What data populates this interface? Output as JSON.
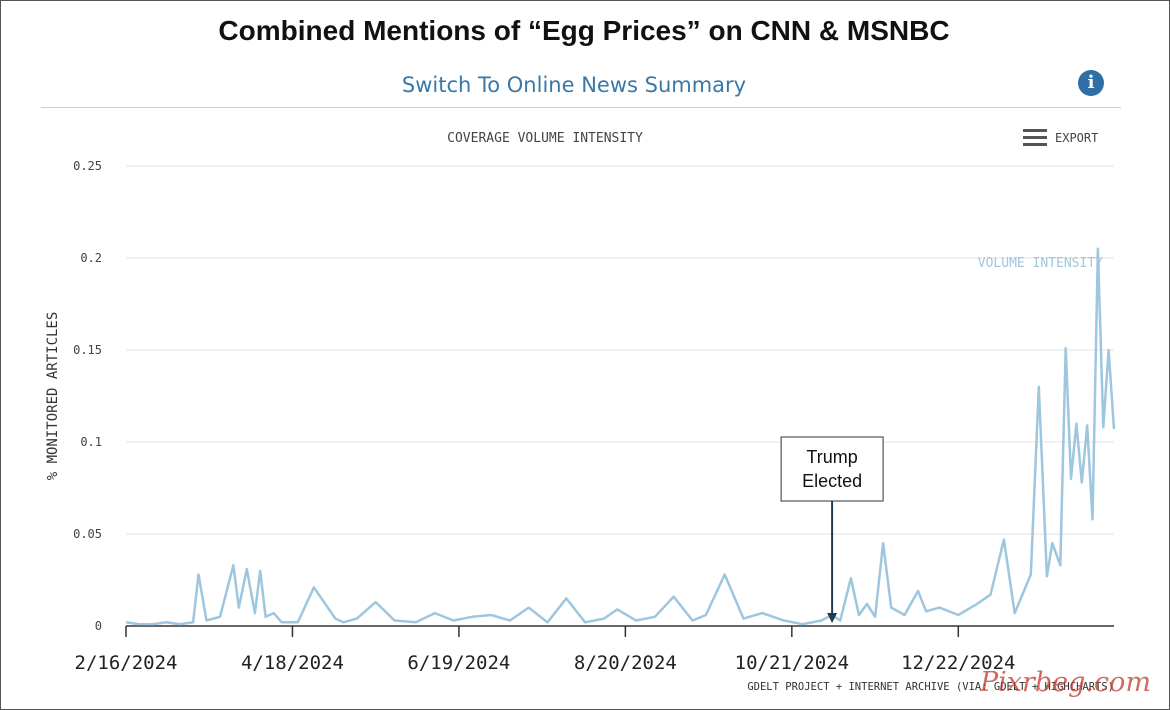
{
  "page": {
    "title": "Combined Mentions of “Egg Prices” on CNN & MSNBC",
    "switch_link": "Switch To Online News Summary",
    "info_icon": "info-icon",
    "export_label": "EXPORT",
    "export_icon": "hamburger-menu-icon",
    "credit": "GDELT PROJECT + INTERNET ARCHIVE (VIA: GDELT + HIGHCHARTS)",
    "watermark": "Pixrbeg.com"
  },
  "colors": {
    "series": "#9ec6df",
    "grid": "#e3e3e3",
    "axis": "#333333",
    "link": "#3a78a8",
    "info": "#2f6ea6",
    "watermark": "#c0392b"
  },
  "chart_data": {
    "type": "line",
    "title": "COVERAGE VOLUME INTENSITY",
    "ylabel": "% MONITORED ARTICLES",
    "xlabel": "",
    "ylim": [
      0,
      0.25
    ],
    "yticks": [
      0,
      0.05,
      0.1,
      0.15,
      0.2,
      0.25
    ],
    "ytick_labels": [
      "0",
      "0.05",
      "0.1",
      "0.15",
      "0.2",
      "0.25"
    ],
    "xlim": [
      "2024-02-16",
      "2025-02-18"
    ],
    "xticks": [
      "2024-02-16",
      "2024-04-18",
      "2024-06-19",
      "2024-08-20",
      "2024-10-21",
      "2024-12-22"
    ],
    "xtick_labels": [
      "2/16/2024",
      "4/18/2024",
      "6/19/2024",
      "8/20/2024",
      "10/21/2024",
      "12/22/2024"
    ],
    "grid": true,
    "series": [
      {
        "name": "VOLUME INTENSITY",
        "x": [
          "2024-02-16",
          "2024-02-21",
          "2024-02-26",
          "2024-03-02",
          "2024-03-07",
          "2024-03-12",
          "2024-03-14",
          "2024-03-17",
          "2024-03-22",
          "2024-03-27",
          "2024-03-29",
          "2024-04-01",
          "2024-04-04",
          "2024-04-06",
          "2024-04-08",
          "2024-04-11",
          "2024-04-14",
          "2024-04-20",
          "2024-04-26",
          "2024-05-04",
          "2024-05-07",
          "2024-05-12",
          "2024-05-19",
          "2024-05-26",
          "2024-06-03",
          "2024-06-10",
          "2024-06-17",
          "2024-06-24",
          "2024-07-01",
          "2024-07-08",
          "2024-07-15",
          "2024-07-22",
          "2024-07-29",
          "2024-08-05",
          "2024-08-12",
          "2024-08-17",
          "2024-08-24",
          "2024-08-31",
          "2024-09-07",
          "2024-09-14",
          "2024-09-19",
          "2024-09-26",
          "2024-10-03",
          "2024-10-10",
          "2024-10-18",
          "2024-10-25",
          "2024-11-01",
          "2024-11-05",
          "2024-11-08",
          "2024-11-12",
          "2024-11-15",
          "2024-11-18",
          "2024-11-21",
          "2024-11-24",
          "2024-11-27",
          "2024-12-02",
          "2024-12-07",
          "2024-12-10",
          "2024-12-15",
          "2024-12-22",
          "2024-12-29",
          "2025-01-03",
          "2025-01-08",
          "2025-01-12",
          "2025-01-18",
          "2025-01-21",
          "2025-01-24",
          "2025-01-26",
          "2025-01-29",
          "2025-01-31",
          "2025-02-02",
          "2025-02-04",
          "2025-02-06",
          "2025-02-08",
          "2025-02-10",
          "2025-02-12",
          "2025-02-14",
          "2025-02-16",
          "2025-02-18"
        ],
        "values": [
          0.002,
          0.001,
          0.001,
          0.002,
          0.001,
          0.002,
          0.028,
          0.003,
          0.005,
          0.033,
          0.01,
          0.031,
          0.007,
          0.03,
          0.005,
          0.007,
          0.002,
          0.002,
          0.021,
          0.004,
          0.002,
          0.004,
          0.013,
          0.003,
          0.002,
          0.007,
          0.003,
          0.005,
          0.006,
          0.003,
          0.01,
          0.002,
          0.015,
          0.002,
          0.004,
          0.009,
          0.003,
          0.005,
          0.016,
          0.003,
          0.006,
          0.028,
          0.004,
          0.007,
          0.003,
          0.001,
          0.003,
          0.006,
          0.003,
          0.026,
          0.006,
          0.012,
          0.005,
          0.045,
          0.01,
          0.006,
          0.019,
          0.008,
          0.01,
          0.006,
          0.012,
          0.017,
          0.047,
          0.007,
          0.028,
          0.13,
          0.027,
          0.045,
          0.033,
          0.151,
          0.08,
          0.11,
          0.078,
          0.109,
          0.058,
          0.205,
          0.108,
          0.15,
          0.107
        ]
      }
    ],
    "annotation": {
      "label": "Trump\nElected",
      "label_lines": [
        "Trump",
        "Elected"
      ],
      "x": "2024-11-05"
    }
  }
}
